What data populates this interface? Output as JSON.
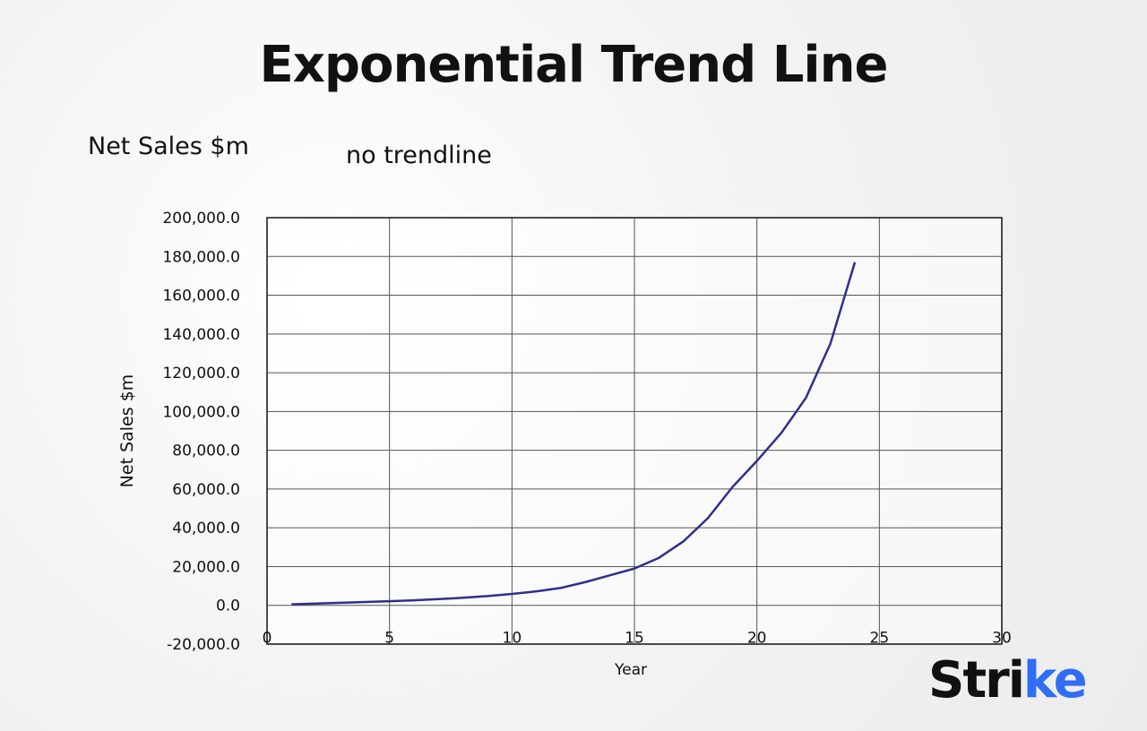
{
  "title": "Exponential Trend Line",
  "subtitle_left": "Net Sales $m",
  "subtitle_right": "no trendline",
  "logo": {
    "text_main": "Stri",
    "text_accent": "ke",
    "accent_color": "#2f6df6"
  },
  "chart_data": {
    "type": "line",
    "xlabel": "Year",
    "ylabel": "Net Sales $m",
    "xlim": [
      0,
      30
    ],
    "ylim": [
      -20000,
      200000
    ],
    "x_ticks": [
      "0",
      "5",
      "10",
      "15",
      "20",
      "25",
      "30"
    ],
    "y_ticks": [
      "-20,000.0",
      "0.0",
      "20,000.0",
      "40,000.0",
      "60,000.0",
      "80,000.0",
      "100,000.0",
      "120,000.0",
      "140,000.0",
      "160,000.0",
      "180,000.0",
      "200,000.0"
    ],
    "grid": true,
    "line_color": "#2e2f8c",
    "x": [
      1,
      2,
      3,
      4,
      5,
      6,
      7,
      8,
      9,
      10,
      11,
      12,
      13,
      14,
      15,
      16,
      17,
      18,
      19,
      20,
      21,
      22,
      23,
      24
    ],
    "y": [
      500,
      900,
      1300,
      1700,
      2100,
      2600,
      3200,
      3900,
      4800,
      5900,
      7200,
      9000,
      12000,
      15500,
      19000,
      24500,
      33000,
      45000,
      61000,
      74500,
      89000,
      107000,
      135000,
      177000
    ]
  }
}
